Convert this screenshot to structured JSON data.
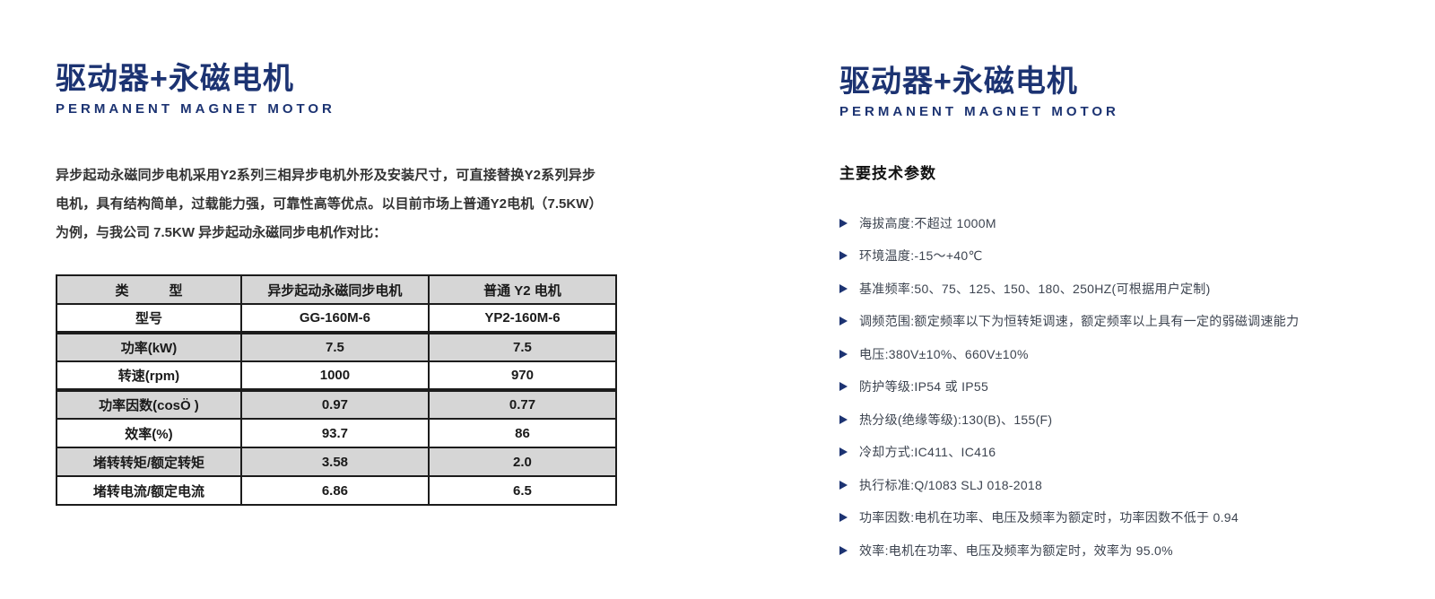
{
  "colors": {
    "brand_navy": "#1c3372",
    "table_row_gray": "#d6d6d6",
    "table_border": "#1c1c1c",
    "param_text": "#3d4450"
  },
  "left": {
    "title": "驱动器+永磁电机",
    "subtitle": "PERMANENT MAGNET MOTOR",
    "intro": "异步起动永磁同步电机采用Y2系列三相异步电机外形及安装尺寸，可直接替换Y2系列异步电机，具有结构简单，过载能力强，可靠性高等优点。以目前市场上普通Y2电机（7.5KW）为例，与我公司 7.5KW 异步起动永磁同步电机作对比：",
    "table": {
      "header": [
        "类　　　型",
        "异步起动永磁同步电机",
        "普通 Y2 电机"
      ],
      "rows": [
        [
          "型号",
          "GG-160M-6",
          "YP2-160M-6"
        ],
        [
          "功率(kW)",
          "7.5",
          "7.5"
        ],
        [
          "转速(rpm)",
          "1000",
          "970"
        ],
        [
          "功率因数(cosÖ )",
          "0.97",
          "0.77"
        ],
        [
          "效率(%)",
          "93.7",
          "86"
        ],
        [
          "堵转转矩/额定转矩",
          "3.58",
          "2.0"
        ],
        [
          "堵转电流/额定电流",
          "6.86",
          "6.5"
        ]
      ],
      "thick_separator_after_rows": [
        0,
        2
      ]
    }
  },
  "right": {
    "title": "驱动器+永磁电机",
    "subtitle": "PERMANENT MAGNET MOTOR",
    "section_heading": "主要技术参数",
    "parameters": [
      "海拔高度:不超过 1000M",
      "环境温度:-15～+40℃",
      "基准频率:50、75、125、150、180、250HZ(可根据用户定制)",
      "调频范围:额定频率以下为恒转矩调速，额定频率以上具有一定的弱磁调速能力",
      "电压:380V±10%、660V±10%",
      "防护等级:IP54 或 IP55",
      "热分级(绝缘等级):130(B)、155(F)",
      "冷却方式:IC411、IC416",
      "执行标准:Q/1083 SLJ 018-2018",
      "功率因数:电机在功率、电压及频率为额定时，功率因数不低于 0.94",
      "效率:电机在功率、电压及频率为额定时，效率为 95.0%"
    ]
  }
}
